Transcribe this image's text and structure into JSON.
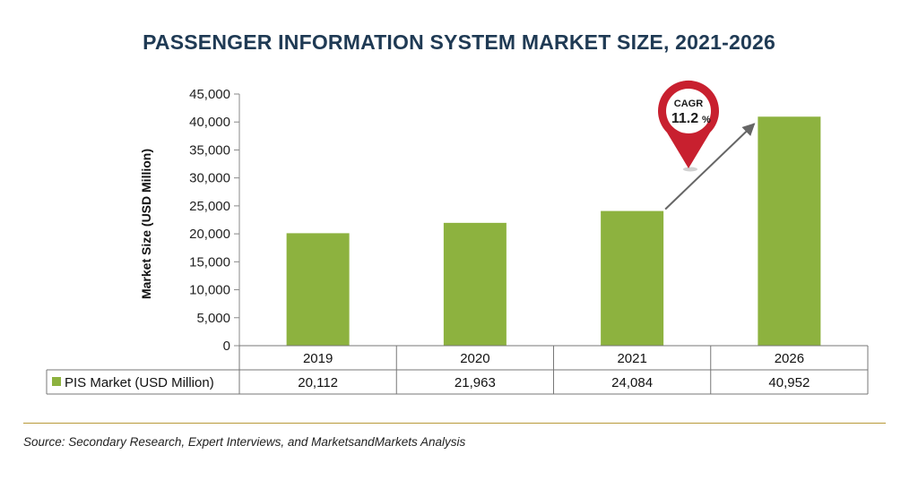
{
  "title": "PASSENGER INFORMATION SYSTEM MARKET SIZE, 2021-2026",
  "source": "Source: Secondary Research, Expert Interviews, and MarketsandMarkets Analysis",
  "annotation": {
    "label": "CAGR",
    "value": "11.2",
    "unit": "%"
  },
  "colors": {
    "bar": "#8db23f",
    "title": "#1f3a54",
    "pin": "#c8202f",
    "rule": "#b89a3a"
  },
  "chart_data": {
    "type": "bar",
    "title": "PASSENGER INFORMATION SYSTEM MARKET SIZE, 2021-2026",
    "ylabel": "Market Size (USD Million)",
    "categories": [
      "2019",
      "2020",
      "2021",
      "2026"
    ],
    "series": [
      {
        "name": "PIS Market (USD Million)",
        "values": [
          20112,
          21963,
          24084,
          40952
        ],
        "labels": [
          "20,112",
          "21,963",
          "24,084",
          "40,952"
        ]
      }
    ],
    "ylim": [
      0,
      45000
    ],
    "yticks": [
      0,
      5000,
      10000,
      15000,
      20000,
      25000,
      30000,
      35000,
      40000,
      45000
    ],
    "ytick_labels": [
      "0",
      "5,000",
      "10,000",
      "15,000",
      "20,000",
      "25,000",
      "30,000",
      "35,000",
      "40,000",
      "45,000"
    ],
    "grid": false,
    "legend": "data-table-below"
  }
}
